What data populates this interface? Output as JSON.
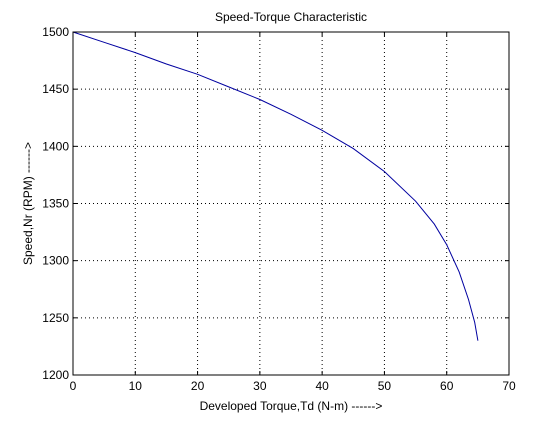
{
  "chart_data": {
    "type": "line",
    "title": "Speed-Torque Characteristic",
    "xlabel": "Developed Torque,Td (N-m) ------>",
    "ylabel": "Speed,Nr (RPM) ------>",
    "xlim": [
      0,
      70
    ],
    "ylim": [
      1200,
      1500
    ],
    "xticks": [
      0,
      10,
      20,
      30,
      40,
      50,
      60,
      70
    ],
    "yticks": [
      1200,
      1250,
      1300,
      1350,
      1400,
      1450,
      1500
    ],
    "grid": true,
    "colors": {
      "line": "#0000a0",
      "axes": "#000000",
      "background": "#ffffff"
    },
    "series": [
      {
        "x": [
          0,
          5,
          10,
          15,
          20,
          25,
          30,
          35,
          40,
          45,
          50,
          55,
          58,
          60,
          62,
          63.5,
          64.5,
          65
        ],
        "y": [
          1500,
          1491,
          1482,
          1472,
          1463,
          1452,
          1441,
          1428,
          1414,
          1398,
          1378,
          1352,
          1332,
          1314,
          1290,
          1266,
          1246,
          1230
        ]
      }
    ]
  }
}
